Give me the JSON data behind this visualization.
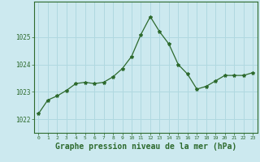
{
  "x": [
    0,
    1,
    2,
    3,
    4,
    5,
    6,
    7,
    8,
    9,
    10,
    11,
    12,
    13,
    14,
    15,
    16,
    17,
    18,
    19,
    20,
    21,
    22,
    23
  ],
  "y": [
    1022.2,
    1022.7,
    1022.85,
    1023.05,
    1023.3,
    1023.35,
    1023.3,
    1023.35,
    1023.55,
    1023.85,
    1024.3,
    1025.1,
    1025.75,
    1025.2,
    1024.75,
    1024.0,
    1023.65,
    1023.1,
    1023.2,
    1023.4,
    1023.6,
    1023.6,
    1023.6,
    1023.7
  ],
  "line_color": "#2d6a2d",
  "marker": "*",
  "marker_size": 3,
  "background_color": "#cce9ef",
  "grid_color": "#b0d8e0",
  "ylabel_values": [
    1022,
    1023,
    1024,
    1025
  ],
  "xlabel_label": "Graphe pression niveau de la mer (hPa)",
  "xlabel_fontsize": 7,
  "ylim": [
    1021.5,
    1026.3
  ],
  "xlim": [
    -0.5,
    23.5
  ]
}
